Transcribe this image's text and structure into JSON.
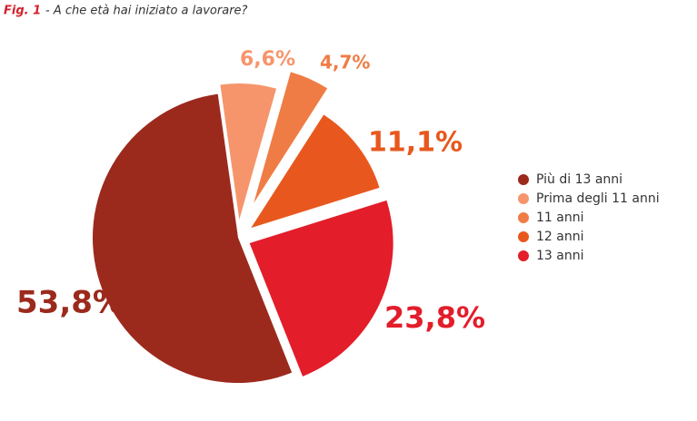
{
  "chart_data": {
    "type": "pie",
    "figure_label": "Fig. 1",
    "title": "- A che età hai iniziato a lavorare?",
    "categories": [
      "Più di 13 anni",
      "Prima degli 11 anni",
      "11 anni",
      "12 anni",
      "13 anni"
    ],
    "values": [
      53.8,
      6.6,
      4.7,
      11.1,
      23.8
    ],
    "value_labels": [
      "53,8%",
      "6,6%",
      "4,7%",
      "11,1%",
      "23,8%"
    ],
    "colors": [
      "#9b2a1d",
      "#f6956b",
      "#f07c45",
      "#e8581e",
      "#e31d2a"
    ],
    "legend": "right"
  }
}
